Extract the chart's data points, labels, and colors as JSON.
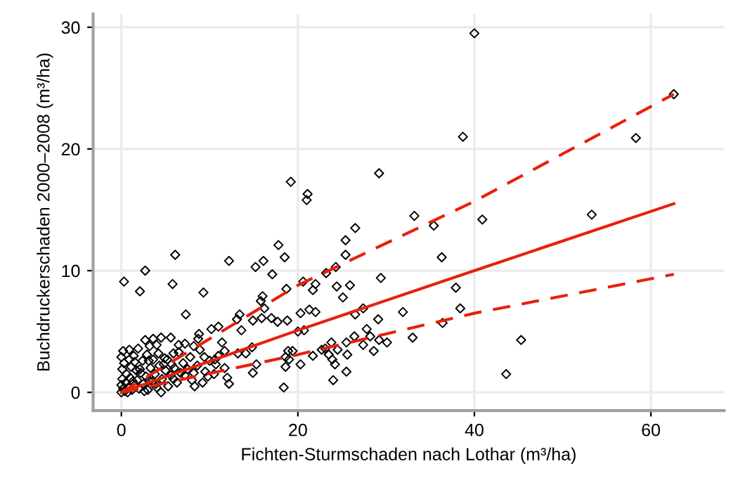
{
  "chart_data": {
    "type": "scatter",
    "xlabel": "Fichten-Sturmschaden nach Lothar (m³/ha)",
    "ylabel": "Buchdruckerschaden 2000–2008 (m³/ha)",
    "xlim": [
      -3.2,
      68.3
    ],
    "ylim": [
      -1.5,
      31.1
    ],
    "xticks": [
      0,
      20,
      40,
      60
    ],
    "yticks": [
      0,
      10,
      20,
      30
    ],
    "grid": true,
    "legend": false,
    "series": [
      {
        "color": "#000000",
        "marker": "diamond",
        "x": [
          40.0,
          38.7,
          58.3,
          62.6,
          40.9,
          53.3,
          35.4,
          36.3,
          37.9,
          38.4,
          36.4,
          45.3,
          43.6,
          19.2,
          21.1,
          21.0,
          29.2,
          33.2,
          26.5,
          25.4,
          25.4,
          24.3,
          23.2,
          29.4,
          20.6,
          22.0,
          21.7,
          24.4,
          25.9,
          25.1,
          18.7,
          20.3,
          21.3,
          22.0,
          27.4,
          26.5,
          31.9,
          18.8,
          29.1,
          20.7,
          20.0,
          27.8,
          26.4,
          25.5,
          27.4,
          28.2,
          29.2,
          30.1,
          33.0,
          18.9,
          19.4,
          23.8,
          23.1,
          22.7,
          24.5,
          25.6,
          28.6,
          21.7,
          18.6,
          23.5,
          23.9,
          18.6,
          20.3,
          24.2,
          25.5,
          24.0,
          18.4,
          6.1,
          2.7,
          0.3,
          5.8,
          2.1,
          9.3,
          12.2,
          15.2,
          16.1,
          17.1,
          17.8,
          18.5,
          16.0,
          15.8,
          16.2,
          7.3,
          13.4,
          13.1,
          14.9,
          15.9,
          17.0,
          17.7,
          8.8,
          8.7,
          10.2,
          11.0,
          13.6,
          14.8,
          11.4,
          11.7,
          13.2,
          14.1,
          19.0,
          15.3,
          14.9,
          10.7,
          11.7,
          12.2,
          12.0,
          3.6,
          4.5,
          5.6,
          6.5,
          7.2,
          0.9,
          0.0,
          8.2,
          8.9,
          9.4,
          10.0,
          10.6,
          8.2,
          7.2,
          8.3,
          9.5,
          1.5,
          3.1,
          4.9,
          5.7,
          5.9,
          7.8,
          0.0,
          0.2,
          0.4,
          0.5,
          0.8,
          1.0,
          1.2,
          1.5,
          1.8,
          2.0,
          2.2,
          2.5,
          2.8,
          3.0,
          3.3,
          3.5,
          3.8,
          4.0,
          4.3,
          4.6,
          5.0,
          5.3,
          5.6,
          6.0,
          6.3,
          6.7,
          7.0,
          0.1,
          0.3,
          0.6,
          1.1,
          1.4,
          1.7,
          2.4,
          2.9,
          3.6,
          4.2,
          4.8,
          0.0,
          0.1,
          0.7,
          1.3,
          2.1,
          2.6,
          3.1,
          3.9,
          4.5,
          5.2,
          5.9,
          6.5,
          7.5,
          8.0,
          8.6,
          9.2,
          9.8,
          10.5,
          11.0,
          0.2,
          0.9,
          1.9,
          2.7,
          3.2,
          4.0
        ],
        "values": [
          29.5,
          21.0,
          20.9,
          24.5,
          14.2,
          14.6,
          13.7,
          11.1,
          8.6,
          6.9,
          5.7,
          4.3,
          1.5,
          17.3,
          16.3,
          15.8,
          18.0,
          14.5,
          13.5,
          12.5,
          11.3,
          10.3,
          9.8,
          9.4,
          9.1,
          8.9,
          8.4,
          8.7,
          8.8,
          7.8,
          8.5,
          6.5,
          6.8,
          6.6,
          6.9,
          6.4,
          6.6,
          5.9,
          6.0,
          5.1,
          5.0,
          5.2,
          4.6,
          4.1,
          3.9,
          4.6,
          4.3,
          4.1,
          4.5,
          3.4,
          3.4,
          4.1,
          3.6,
          3.5,
          3.5,
          3.1,
          3.4,
          3.0,
          2.9,
          3.1,
          2.7,
          2.1,
          2.3,
          2.3,
          1.7,
          1.0,
          0.4,
          11.3,
          10.0,
          9.1,
          8.9,
          8.3,
          8.2,
          10.8,
          10.3,
          10.8,
          9.7,
          12.1,
          11.1,
          7.9,
          7.5,
          6.9,
          6.4,
          6.4,
          6.0,
          5.9,
          6.1,
          6.1,
          5.8,
          4.8,
          4.4,
          5.2,
          5.4,
          5.1,
          3.7,
          4.1,
          3.4,
          3.2,
          3.2,
          2.7,
          2.3,
          1.6,
          2.3,
          2.0,
          0.7,
          1.2,
          4.4,
          4.5,
          4.5,
          3.9,
          4.0,
          3.5,
          2.9,
          3.8,
          3.5,
          2.9,
          2.6,
          2.7,
          1.6,
          1.4,
          0.5,
          1.7,
          2.5,
          2.6,
          2.8,
          2.3,
          3.2,
          2.9,
          0.0,
          0.3,
          0.1,
          0.8,
          0.4,
          1.2,
          0.2,
          0.6,
          1.0,
          0.3,
          1.6,
          0.7,
          1.3,
          0.2,
          2.0,
          0.9,
          1.5,
          0.4,
          2.2,
          1.1,
          1.8,
          0.5,
          1.4,
          2.0,
          0.8,
          1.6,
          2.4,
          1.9,
          2.4,
          1.5,
          2.1,
          3.0,
          1.8,
          2.6,
          3.1,
          2.7,
          3.2,
          2.3,
          0.6,
          1.1,
          0.0,
          0.9,
          1.9,
          0.1,
          1.0,
          0.7,
          0.0,
          2.7,
          1.1,
          3.3,
          1.9,
          1.0,
          2.2,
          0.8,
          1.3,
          1.5,
          3.0,
          3.4,
          2.7,
          3.6,
          4.3,
          3.8,
          3.9
        ]
      },
      {
        "type": "line",
        "color": "#e8200c",
        "line_style": "solid",
        "marker": "none",
        "x": [
          0,
          20,
          40,
          62.6
        ],
        "values": [
          0.0,
          5.1,
          10.0,
          15.5
        ]
      },
      {
        "type": "line",
        "color": "#e8200c",
        "line_style": "dashed",
        "marker": "none",
        "x": [
          0,
          20,
          40,
          62.6
        ],
        "values": [
          0.0,
          8.8,
          15.7,
          24.5
        ]
      },
      {
        "type": "line",
        "color": "#e8200c",
        "line_style": "dashed",
        "marker": "none",
        "x": [
          0,
          20,
          40,
          62.6
        ],
        "values": [
          0.0,
          3.1,
          6.5,
          9.7
        ]
      }
    ]
  }
}
